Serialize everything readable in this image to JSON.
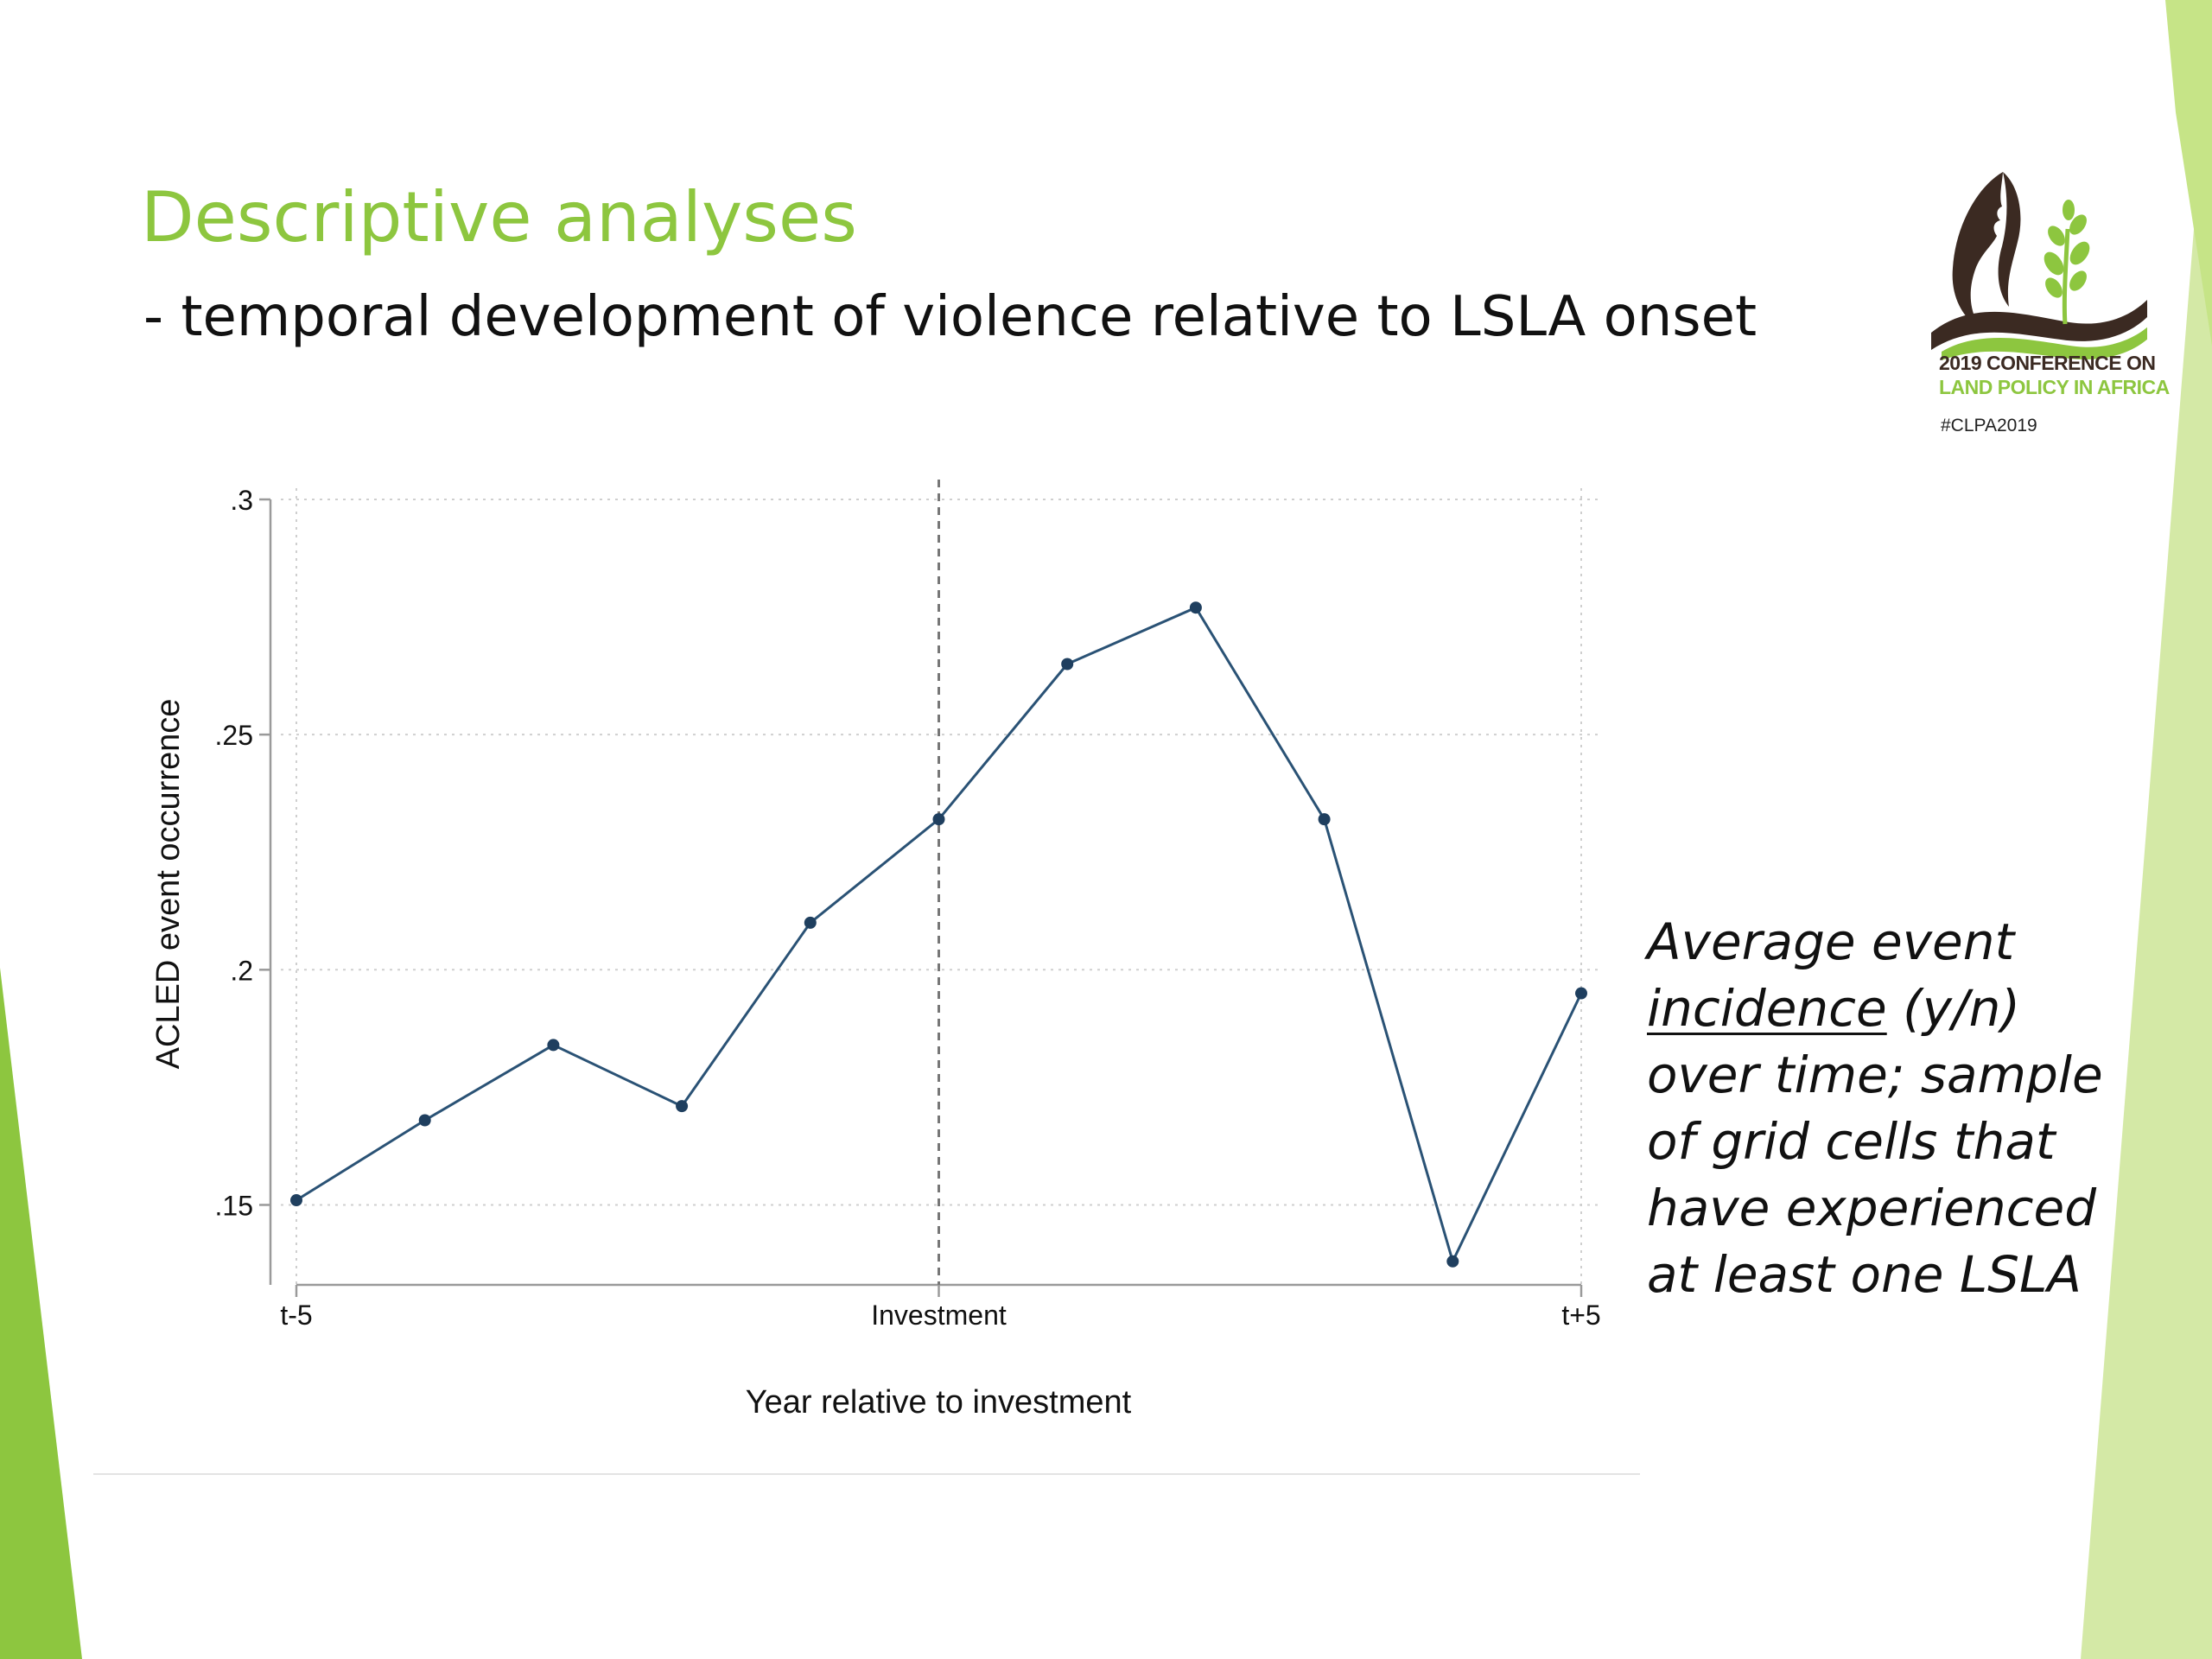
{
  "slide": {
    "title": "Descriptive analyses",
    "subtitle": "- temporal development of violence relative to LSLA onset",
    "accent_color": "#8dc63f",
    "light_accent_color": "#d4e9a6"
  },
  "logo": {
    "line1": "2019 CONFERENCE ON",
    "line2": "LAND POLICY IN AFRICA",
    "hashtag": "#CLPA2019"
  },
  "annotation": {
    "line1": "Average event",
    "line2_underlined": "incidence",
    "line2_rest": " (y/n)",
    "line3": "over time; sample",
    "line4": "of grid cells that",
    "line5": "have experienced",
    "line6": "at least one LSLA"
  },
  "chart_data": {
    "type": "line",
    "title": "",
    "xlabel": "Year relative to investment",
    "ylabel": "ACLED event occurrence",
    "x": [
      -5,
      -4,
      -3,
      -2,
      -1,
      0,
      1,
      2,
      3,
      4,
      5
    ],
    "values": [
      0.151,
      0.168,
      0.184,
      0.171,
      0.21,
      0.232,
      0.265,
      0.277,
      0.232,
      0.138,
      0.195
    ],
    "xlim": [
      -5,
      5
    ],
    "ylim": [
      0.133,
      0.3
    ],
    "xticks": [
      {
        "value": -5,
        "label": "t-5"
      },
      {
        "value": 0,
        "label": "Investment"
      },
      {
        "value": 5,
        "label": "t+5"
      }
    ],
    "yticks": [
      {
        "value": 0.15,
        "label": ".15"
      },
      {
        "value": 0.2,
        "label": ".2"
      },
      {
        "value": 0.25,
        "label": ".25"
      },
      {
        "value": 0.3,
        "label": ".3"
      }
    ],
    "reference_line": {
      "x": 0,
      "style": "dashed"
    },
    "grid": true,
    "line_color": "#2a5275",
    "marker_color": "#1f3f5f"
  }
}
